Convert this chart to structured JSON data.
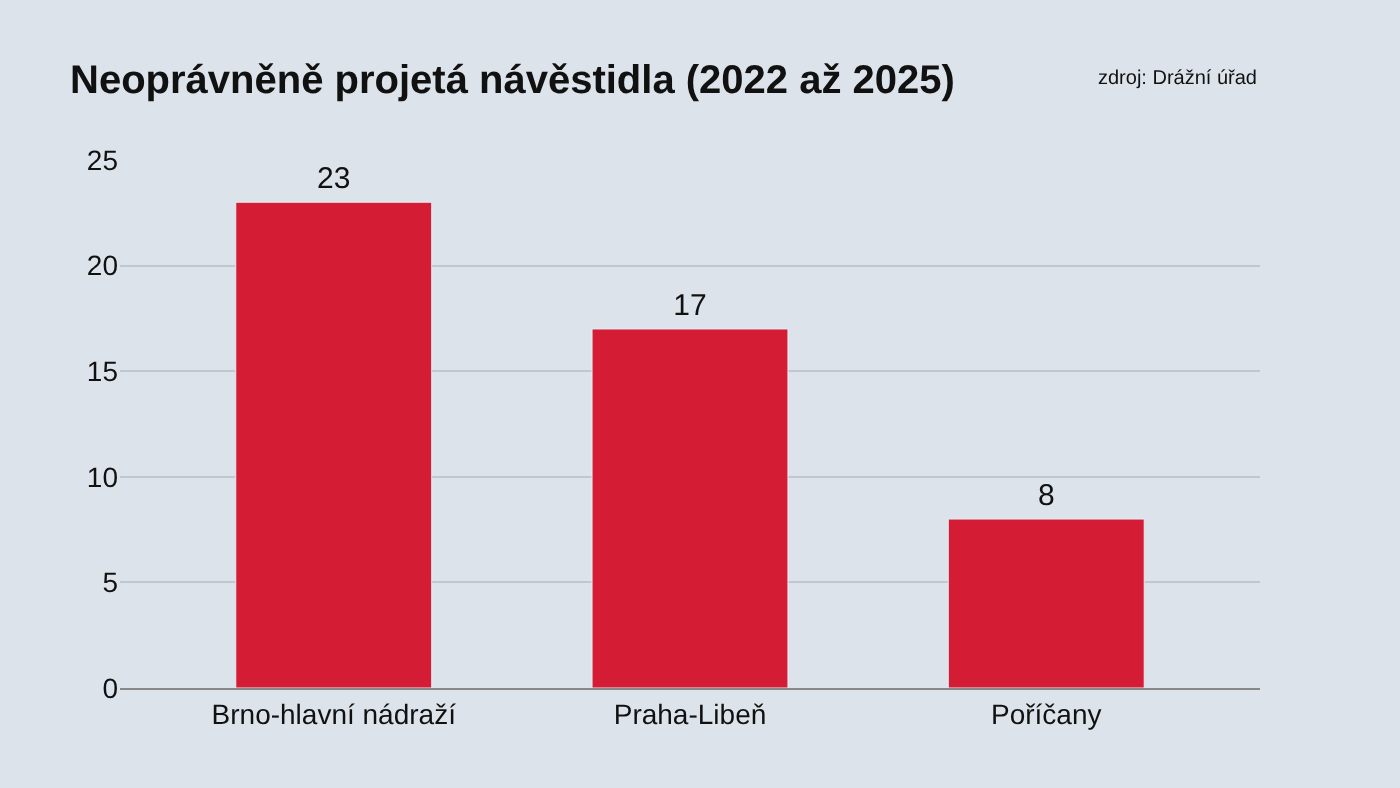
{
  "chart_data": {
    "type": "bar",
    "title": "Neoprávněně projetá návěstidla (2022 až 2025)",
    "annotations": [
      "zdroj: Drážní úřad"
    ],
    "categories": [
      "Brno-hlavní nádraží",
      "Praha-Libeň",
      "Poříčany"
    ],
    "values": [
      23,
      17,
      8
    ],
    "color": "#d41c35",
    "ylim": [
      0,
      25
    ],
    "yticks": [
      0,
      5,
      10,
      15,
      20,
      25
    ],
    "grid": "y",
    "data_labels": true
  }
}
